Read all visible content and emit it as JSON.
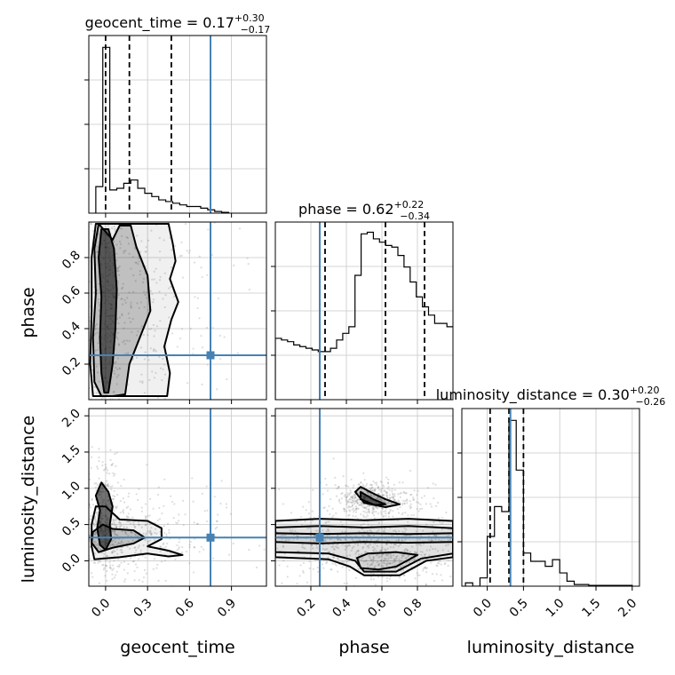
{
  "chart_data": {
    "type": "corner",
    "parameters": [
      "geocent_time",
      "phase",
      "luminosity_distance"
    ],
    "truths": {
      "geocent_time": 0.75,
      "phase": 0.25,
      "luminosity_distance": 0.32
    },
    "truth_color": "#4682b4",
    "contour_color": "#000000",
    "grid": true,
    "titles": [
      {
        "param": "geocent_time",
        "label": "geocent_time = 0.17",
        "plus": "+0.30",
        "minus": "−0.17"
      },
      {
        "param": "phase",
        "label": "phase = 0.62",
        "plus": "+0.22",
        "minus": "−0.34"
      },
      {
        "param": "luminosity_distance",
        "label": "luminosity_distance = 0.30",
        "plus": "+0.20",
        "minus": "−0.26"
      }
    ],
    "axis_labels": {
      "x": [
        "geocent_time",
        "phase",
        "luminosity_distance"
      ],
      "y": [
        "phase",
        "luminosity_distance"
      ]
    },
    "ranges": {
      "geocent_time": [
        -0.12,
        1.15
      ],
      "phase": [
        0.0,
        1.0
      ],
      "luminosity_distance": [
        -0.35,
        2.1
      ]
    },
    "x_ticks": {
      "geocent_time": [
        "0.0",
        "0.3",
        "0.6",
        "0.9"
      ],
      "phase": [
        "0.2",
        "0.4",
        "0.6",
        "0.8"
      ],
      "luminosity_distance": [
        "0.0",
        "0.5",
        "1.0",
        "1.5",
        "2.0"
      ]
    },
    "y_ticks": {
      "phase": [
        "0.2",
        "0.4",
        "0.6",
        "0.8"
      ],
      "luminosity_distance": [
        "0.0",
        "0.5",
        "1.0",
        "1.5",
        "2.0"
      ]
    },
    "quantiles": {
      "geocent_time": [
        0.0,
        0.17,
        0.47
      ],
      "phase": [
        0.28,
        0.62,
        0.84
      ],
      "luminosity_distance": [
        0.04,
        0.3,
        0.5
      ]
    },
    "histograms": {
      "geocent_time": {
        "x0": -0.07,
        "dx": 0.05,
        "counts": [
          0.16,
          1.0,
          0.14,
          0.15,
          0.18,
          0.2,
          0.15,
          0.12,
          0.1,
          0.08,
          0.07,
          0.06,
          0.05,
          0.04,
          0.04,
          0.03,
          0.02,
          0.01,
          0.005
        ]
      },
      "phase": {
        "x0": 0.0,
        "dx": 0.0345,
        "counts": [
          0.37,
          0.36,
          0.35,
          0.33,
          0.32,
          0.31,
          0.3,
          0.29,
          0.29,
          0.31,
          0.36,
          0.4,
          0.44,
          0.75,
          1.0,
          1.01,
          0.97,
          0.95,
          0.93,
          0.92,
          0.87,
          0.8,
          0.71,
          0.62,
          0.56,
          0.51,
          0.46,
          0.46,
          0.44
        ]
      },
      "luminosity_distance": {
        "x0": -0.3,
        "dx": 0.1,
        "counts": [
          0.02,
          0.0,
          0.05,
          0.3,
          0.48,
          0.45,
          1.0,
          0.7,
          0.2,
          0.15,
          0.15,
          0.12,
          0.16,
          0.08,
          0.03,
          0.01,
          0.01,
          0.005,
          0.005,
          0.005,
          0.005,
          0.005,
          0.005
        ]
      }
    },
    "contours": {
      "geocent_time_phase": [
        [
          [
            0.02,
            0.04
          ],
          [
            0.05,
            0.2
          ],
          [
            0.07,
            0.4
          ],
          [
            0.08,
            0.62
          ],
          [
            0.06,
            0.85
          ],
          [
            0.02,
            0.96
          ],
          [
            -0.03,
            0.96
          ],
          [
            -0.05,
            0.8
          ],
          [
            -0.03,
            0.58
          ],
          [
            -0.04,
            0.35
          ],
          [
            -0.03,
            0.15
          ],
          [
            -0.01,
            0.04
          ]
        ],
        [
          [
            0.14,
            0.03
          ],
          [
            0.17,
            0.2
          ],
          [
            0.22,
            0.3
          ],
          [
            0.32,
            0.5
          ],
          [
            0.3,
            0.7
          ],
          [
            0.22,
            0.86
          ],
          [
            0.18,
            0.98
          ],
          [
            0.1,
            0.98
          ],
          [
            0.05,
            0.9
          ],
          [
            -0.05,
            0.99
          ],
          [
            -0.08,
            0.85
          ],
          [
            -0.07,
            0.6
          ],
          [
            -0.09,
            0.35
          ],
          [
            -0.08,
            0.1
          ],
          [
            -0.03,
            0.02
          ],
          [
            0.05,
            0.02
          ]
        ],
        [
          [
            0.44,
            0.02
          ],
          [
            0.46,
            0.15
          ],
          [
            0.42,
            0.3
          ],
          [
            0.47,
            0.45
          ],
          [
            0.52,
            0.55
          ],
          [
            0.46,
            0.68
          ],
          [
            0.5,
            0.78
          ],
          [
            0.48,
            0.88
          ],
          [
            0.45,
            0.99
          ],
          [
            0.3,
            0.99
          ],
          [
            0.2,
            0.99
          ],
          [
            0.1,
            0.99
          ],
          [
            -0.07,
            0.99
          ],
          [
            -0.1,
            0.8
          ],
          [
            -0.1,
            0.5
          ],
          [
            -0.11,
            0.2
          ],
          [
            -0.09,
            0.02
          ],
          [
            0.2,
            0.02
          ]
        ]
      ],
      "geocent_time_luminosity_distance": [
        [
          [
            0.0,
            0.15
          ],
          [
            0.04,
            0.3
          ],
          [
            0.03,
            0.5
          ],
          [
            0.05,
            0.75
          ],
          [
            0.02,
            0.95
          ],
          [
            -0.03,
            1.08
          ],
          [
            -0.07,
            0.9
          ],
          [
            -0.04,
            0.7
          ],
          [
            -0.06,
            0.45
          ],
          [
            -0.04,
            0.22
          ]
        ],
        [
          [
            -0.05,
            0.12
          ],
          [
            0.05,
            0.18
          ],
          [
            0.2,
            0.24
          ],
          [
            0.28,
            0.32
          ],
          [
            0.2,
            0.42
          ],
          [
            0.05,
            0.44
          ],
          [
            -0.02,
            0.5
          ],
          [
            -0.09,
            0.4
          ],
          [
            -0.1,
            0.25
          ]
        ],
        [
          [
            -0.08,
            0.02
          ],
          [
            0.1,
            0.05
          ],
          [
            0.3,
            0.1
          ],
          [
            0.45,
            0.06
          ],
          [
            0.55,
            0.08
          ],
          [
            0.45,
            0.14
          ],
          [
            0.3,
            0.2
          ],
          [
            0.4,
            0.3
          ],
          [
            0.4,
            0.45
          ],
          [
            0.3,
            0.55
          ],
          [
            0.1,
            0.57
          ],
          [
            0.0,
            0.75
          ],
          [
            -0.07,
            0.75
          ],
          [
            -0.1,
            0.5
          ],
          [
            -0.1,
            0.2
          ]
        ]
      ],
      "phase_luminosity_distance": [
        [
          [
            0.48,
            0.95
          ],
          [
            0.55,
            0.85
          ],
          [
            0.62,
            0.78
          ],
          [
            0.56,
            0.77
          ],
          [
            0.48,
            0.85
          ]
        ],
        [
          [
            0.45,
            0.95
          ],
          [
            0.5,
            0.8
          ],
          [
            0.62,
            0.74
          ],
          [
            0.7,
            0.78
          ],
          [
            0.62,
            0.85
          ],
          [
            0.55,
            0.93
          ],
          [
            0.48,
            1.02
          ]
        ],
        [
          [
            0.48,
            -0.1
          ],
          [
            0.58,
            -0.12
          ],
          [
            0.68,
            -0.08
          ],
          [
            0.8,
            0.08
          ],
          [
            0.68,
            0.12
          ],
          [
            0.52,
            0.1
          ],
          [
            0.46,
            0.04
          ]
        ],
        [
          [
            0.0,
            0.26
          ],
          [
            0.25,
            0.24
          ],
          [
            0.5,
            0.26
          ],
          [
            0.75,
            0.25
          ],
          [
            1.0,
            0.26
          ],
          [
            1.0,
            0.38
          ],
          [
            0.75,
            0.37
          ],
          [
            0.5,
            0.38
          ],
          [
            0.25,
            0.37
          ],
          [
            0.0,
            0.38
          ]
        ],
        [
          [
            0.0,
            0.12
          ],
          [
            0.3,
            0.1
          ],
          [
            0.45,
            0.0
          ],
          [
            0.5,
            -0.15
          ],
          [
            0.68,
            -0.15
          ],
          [
            0.82,
            0.03
          ],
          [
            1.0,
            0.1
          ],
          [
            1.0,
            0.45
          ],
          [
            0.75,
            0.48
          ],
          [
            0.5,
            0.46
          ],
          [
            0.25,
            0.48
          ],
          [
            0.0,
            0.46
          ]
        ],
        [
          [
            0.0,
            0.05
          ],
          [
            0.3,
            0.02
          ],
          [
            0.42,
            -0.08
          ],
          [
            0.5,
            -0.2
          ],
          [
            0.7,
            -0.2
          ],
          [
            0.85,
            0.0
          ],
          [
            1.0,
            0.05
          ],
          [
            1.0,
            0.55
          ],
          [
            0.75,
            0.58
          ],
          [
            0.5,
            0.56
          ],
          [
            0.25,
            0.58
          ],
          [
            0.0,
            0.55
          ]
        ]
      ]
    }
  }
}
